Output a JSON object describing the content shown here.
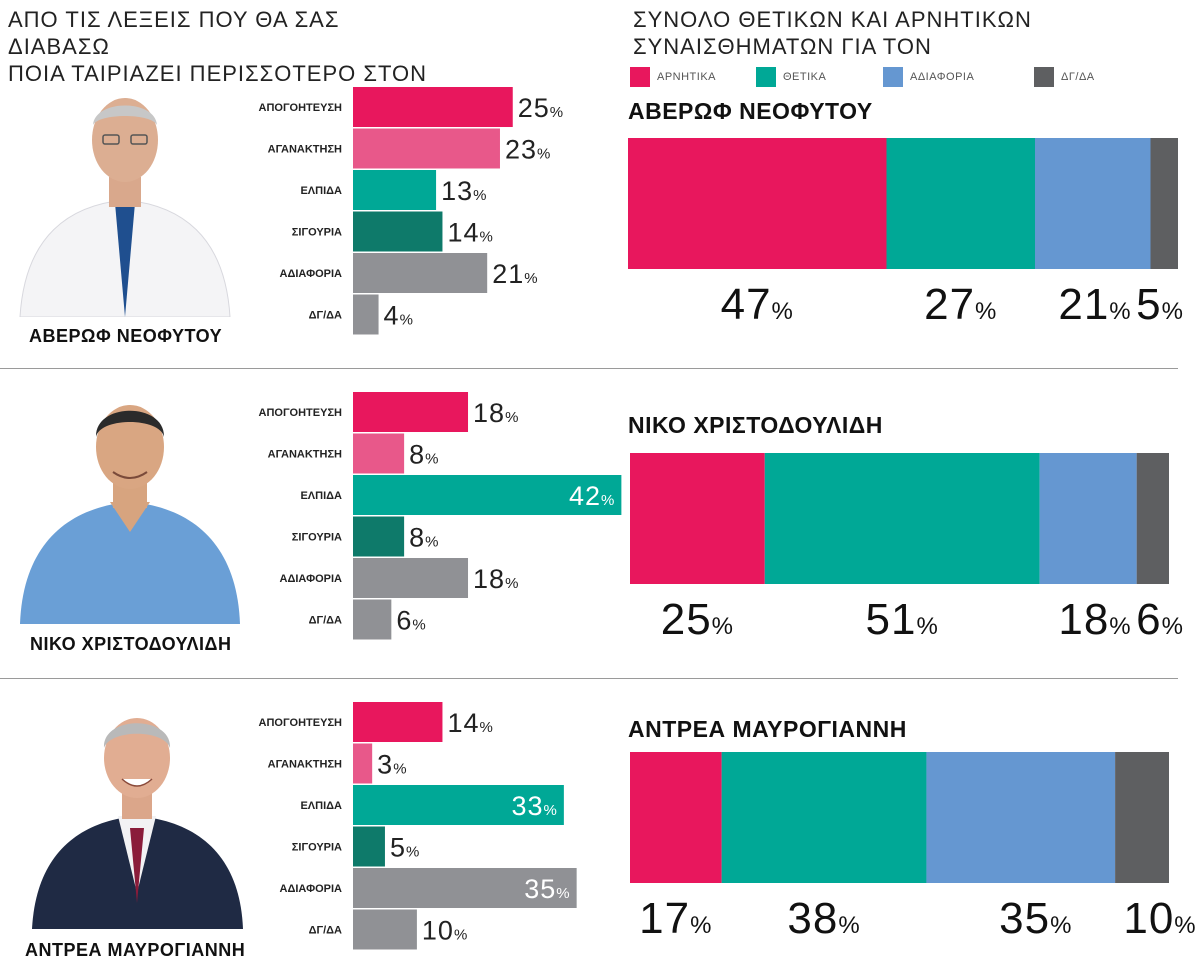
{
  "left_title_lines": [
    "ΑΠΟ ΤΙΣ ΛΕΞΕΙΣ ΠΟΥ ΘΑ ΣΑΣ ΔΙΑΒΑΣΩ",
    "ΠΟΙΑ ΤΑΙΡΙΑΖΕΙ ΠΕΡΙΣΣΟΤΕΡΟ ΣΤΟΝ"
  ],
  "right_title_lines": [
    "ΣΥΝΟΛΟ ΘΕΤΙΚΩΝ ΚΑΙ ΑΡΝΗΤΙΚΩΝ",
    "ΣΥΝΑΙΣΘΗΜΑΤΩΝ ΓΙΑ ΤΟΝ"
  ],
  "candidates": [
    "ΑΒΕΡΩΦ ΝΕΟΦΥΤΟΥ",
    "ΝΙΚΟ ΧΡΙΣΤΟΔΟΥΛΙΔΗ",
    "ΑΝΤΡΕΑ ΜΑΥΡΟΓΙΑΝΝΗ"
  ],
  "colors": {
    "apogoitefsi": "#e8175d",
    "aganaktisi": "#e8588a",
    "elpida": "#00a896",
    "sigouria": "#0e7a6a",
    "adiaforia": "#909195",
    "dgda": "#909195",
    "arnitika": "#e8175d",
    "thetika": "#00a896",
    "adiaforia_total": "#6597d1",
    "dgda_total": "#5e5f61"
  },
  "chart_data": [
    {
      "type": "bar",
      "orientation": "horizontal",
      "categories": [
        "ΑΠΟΓΟΗΤΕΥΣΗ",
        "ΑΓΑΝΑΚΤΗΣΗ",
        "ΕΛΠΙΔΑ",
        "ΣΙΓΟΥΡΙΑ",
        "ΑΔΙΑΦΟΡΙΑ",
        "ΔΓ/ΔΑ"
      ],
      "series": [
        {
          "name": "ΑΒΕΡΩΦ ΝΕΟΦΥΤΟΥ",
          "values": [
            25,
            23,
            13,
            14,
            21,
            4
          ]
        },
        {
          "name": "ΝΙΚΟ ΧΡΙΣΤΟΔΟΥΛΙΔΗ",
          "values": [
            18,
            8,
            42,
            8,
            18,
            6
          ]
        },
        {
          "name": "ΑΝΤΡΕΑ ΜΑΥΡΟΓΙΑΝΝΗ",
          "values": [
            14,
            3,
            33,
            5,
            35,
            10
          ]
        }
      ],
      "unit": "%",
      "title": ""
    },
    {
      "type": "bar",
      "orientation": "horizontal",
      "stacked": true,
      "legend": [
        "ΑΡΝΗΤΙΚΑ",
        "ΘΕΤΙΚΑ",
        "ΑΔΙΑΦΟΡΙΑ",
        "ΔΓ/ΔΑ"
      ],
      "legend_placement": "top",
      "series": [
        {
          "name": "ΑΒΕΡΩΦ ΝΕΟΦΥΤΟΥ",
          "values": [
            47,
            27,
            21,
            5
          ]
        },
        {
          "name": "ΝΙΚΟ ΧΡΙΣΤΟΔΟΥΛΙΔΗ",
          "values": [
            25,
            51,
            18,
            6
          ]
        },
        {
          "name": "ΑΝΤΡΕΑ ΜΑΥΡΟΓΙΑΝΝΗ",
          "values": [
            17,
            38,
            35,
            10
          ]
        }
      ],
      "unit": "%",
      "title": ""
    }
  ]
}
